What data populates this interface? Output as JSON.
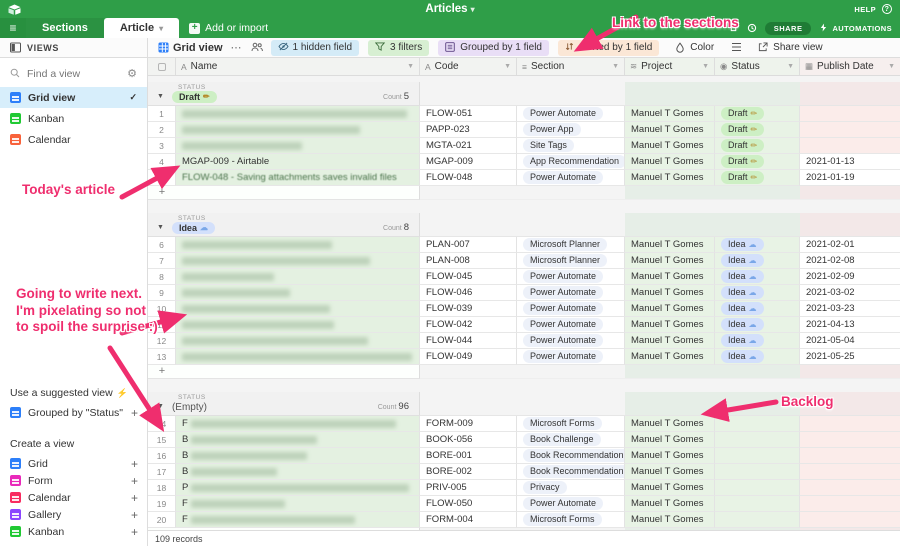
{
  "topbar": {
    "title": "Articles",
    "help_label": "HELP",
    "share_label": "SHARE",
    "automations_label": "AUTOMATIONS"
  },
  "tabs": {
    "sections": "Sections",
    "article": "Article",
    "add_import": "Add or import"
  },
  "toolbar": {
    "views_label": "VIEWS",
    "view_name": "Grid view",
    "hidden_field": "1 hidden field",
    "filters": "3 filters",
    "grouped": "Grouped by 1 field",
    "sorted": "Sorted by 1 field",
    "color_label": "Color",
    "share_view": "Share view"
  },
  "sidebar": {
    "search_placeholder": "Find a view",
    "views": [
      {
        "label": "Grid view",
        "selected": true,
        "color": "#2d7ff9"
      },
      {
        "label": "Kanban",
        "selected": false,
        "color": "#20c933"
      },
      {
        "label": "Calendar",
        "selected": false,
        "color": "#f8623b"
      }
    ],
    "suggested_title": "Use a suggested view",
    "suggested_item": "Grouped by \"Status\"",
    "create_title": "Create a view",
    "create_items": [
      {
        "label": "Grid",
        "color": "#2d7ff9"
      },
      {
        "label": "Form",
        "color": "#e929ba"
      },
      {
        "label": "Calendar",
        "color": "#f82b60"
      },
      {
        "label": "Gallery",
        "color": "#8b46ff"
      },
      {
        "label": "Kanban",
        "color": "#20c933"
      }
    ]
  },
  "grid": {
    "group_field": "STATUS",
    "count_word": "Count",
    "footer": "109 records",
    "columns": [
      {
        "label": "Name"
      },
      {
        "label": "Code"
      },
      {
        "label": "Section"
      },
      {
        "label": "Project"
      },
      {
        "label": "Status"
      },
      {
        "label": "Publish Date"
      }
    ],
    "groups": [
      {
        "label": "Draft",
        "emoji": "✏",
        "style": "draft",
        "count": "5",
        "rows": [
          {
            "num": "1",
            "blur": 225,
            "code": "FLOW-051",
            "section": "Power Automate",
            "project": "Manuel T Gomes",
            "status": "Draft",
            "date": ""
          },
          {
            "num": "2",
            "blur": 178,
            "code": "PAPP-023",
            "section": "Power App",
            "project": "Manuel T Gomes",
            "status": "Draft",
            "date": ""
          },
          {
            "num": "3",
            "blur": 120,
            "code": "MGTA-021",
            "section": "Site Tags",
            "project": "Manuel T Gomes",
            "status": "Draft",
            "date": ""
          },
          {
            "num": "4",
            "name": "MGAP-009 - Airtable",
            "code": "MGAP-009",
            "section": "App Recommendation",
            "project": "Manuel T Gomes",
            "status": "Draft",
            "date": "2021-01-13"
          },
          {
            "num": "5",
            "name": "FLOW-048 - Saving attachments saves invalid files",
            "soft": true,
            "code": "FLOW-048",
            "section": "Power Automate",
            "project": "Manuel T Gomes",
            "status": "Draft",
            "date": "2021-01-19"
          }
        ]
      },
      {
        "label": "Idea",
        "emoji": "☁",
        "style": "idea",
        "count": "8",
        "rows": [
          {
            "num": "6",
            "blur": 150,
            "code": "PLAN-007",
            "section": "Microsoft Planner",
            "project": "Manuel T Gomes",
            "status": "Idea",
            "date": "2021-02-01"
          },
          {
            "num": "7",
            "blur": 188,
            "code": "PLAN-008",
            "section": "Microsoft Planner",
            "project": "Manuel T Gomes",
            "status": "Idea",
            "date": "2021-02-08"
          },
          {
            "num": "8",
            "blur": 92,
            "code": "FLOW-045",
            "section": "Power Automate",
            "project": "Manuel T Gomes",
            "status": "Idea",
            "date": "2021-02-09"
          },
          {
            "num": "9",
            "blur": 108,
            "code": "FLOW-046",
            "section": "Power Automate",
            "project": "Manuel T Gomes",
            "status": "Idea",
            "date": "2021-03-02"
          },
          {
            "num": "10",
            "blur": 148,
            "code": "FLOW-039",
            "section": "Power Automate",
            "project": "Manuel T Gomes",
            "status": "Idea",
            "date": "2021-03-23"
          },
          {
            "num": "11",
            "blur": 152,
            "code": "FLOW-042",
            "section": "Power Automate",
            "project": "Manuel T Gomes",
            "status": "Idea",
            "date": "2021-04-13"
          },
          {
            "num": "12",
            "blur": 186,
            "code": "FLOW-044",
            "section": "Power Automate",
            "project": "Manuel T Gomes",
            "status": "Idea",
            "date": "2021-05-04"
          },
          {
            "num": "13",
            "blur": 230,
            "code": "FLOW-049",
            "section": "Power Automate",
            "project": "Manuel T Gomes",
            "status": "Idea",
            "date": "2021-05-25"
          }
        ]
      },
      {
        "label": "(Empty)",
        "emoji": "",
        "style": "empty",
        "count": "96",
        "rows": [
          {
            "num": "14",
            "lead": "F",
            "blur": 205,
            "code": "FORM-009",
            "section": "Microsoft Forms",
            "project": "Manuel T Gomes",
            "status": "",
            "date": ""
          },
          {
            "num": "15",
            "lead": "B",
            "blur": 126,
            "code": "BOOK-056",
            "section": "Book Challenge",
            "project": "Manuel T Gomes",
            "status": "",
            "date": ""
          },
          {
            "num": "16",
            "lead": "B",
            "blur": 116,
            "code": "BORE-001",
            "section": "Book Recommendation",
            "project": "Manuel T Gomes",
            "status": "",
            "date": ""
          },
          {
            "num": "17",
            "lead": "B",
            "blur": 86,
            "code": "BORE-002",
            "section": "Book Recommendation",
            "project": "Manuel T Gomes",
            "status": "",
            "date": ""
          },
          {
            "num": "18",
            "lead": "P",
            "blur": 218,
            "code": "PRIV-005",
            "section": "Privacy",
            "project": "Manuel T Gomes",
            "status": "",
            "date": ""
          },
          {
            "num": "19",
            "lead": "F",
            "blur": 94,
            "code": "FLOW-050",
            "section": "Power Automate",
            "project": "Manuel T Gomes",
            "status": "",
            "date": ""
          },
          {
            "num": "20",
            "lead": "F",
            "blur": 164,
            "code": "FORM-004",
            "section": "Microsoft Forms",
            "project": "Manuel T Gomes",
            "status": "",
            "date": ""
          }
        ]
      }
    ]
  },
  "annotations": {
    "link_sections": "Link to the sections",
    "todays_article": "Today's article",
    "write_next": "Going to write next. I'm pixelating so not to spoil the surprise :)",
    "backlog": "Backlog",
    "color": "#ef2e6e"
  }
}
